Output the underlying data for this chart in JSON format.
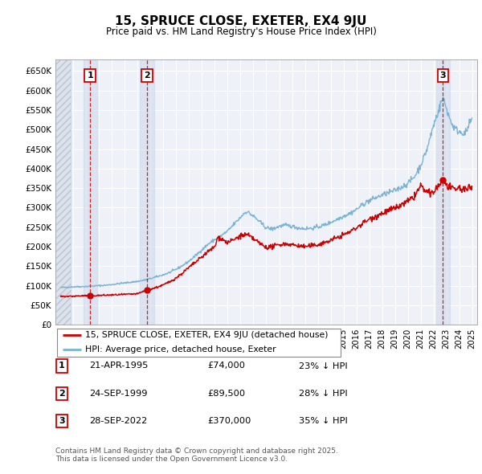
{
  "title": "15, SPRUCE CLOSE, EXETER, EX4 9JU",
  "subtitle": "Price paid vs. HM Land Registry's House Price Index (HPI)",
  "ylim": [
    0,
    680000
  ],
  "yticks": [
    0,
    50000,
    100000,
    150000,
    200000,
    250000,
    300000,
    350000,
    400000,
    450000,
    500000,
    550000,
    600000,
    650000
  ],
  "ytick_labels": [
    "£0",
    "£50K",
    "£100K",
    "£150K",
    "£200K",
    "£250K",
    "£300K",
    "£350K",
    "£400K",
    "£450K",
    "£500K",
    "£550K",
    "£600K",
    "£650K"
  ],
  "xlim_start": 1992.6,
  "xlim_end": 2025.4,
  "xticks": [
    1993,
    1994,
    1995,
    1996,
    1997,
    1998,
    1999,
    2000,
    2001,
    2002,
    2003,
    2004,
    2005,
    2006,
    2007,
    2008,
    2009,
    2010,
    2011,
    2012,
    2013,
    2014,
    2015,
    2016,
    2017,
    2018,
    2019,
    2020,
    2021,
    2022,
    2023,
    2024,
    2025
  ],
  "price_paid": [
    {
      "year": 1995.31,
      "price": 74000,
      "label": "1",
      "date": "21-APR-1995",
      "pct": "23%"
    },
    {
      "year": 1999.73,
      "price": 89500,
      "label": "2",
      "date": "24-SEP-1999",
      "pct": "28%"
    },
    {
      "year": 2022.74,
      "price": 370000,
      "label": "3",
      "date": "28-SEP-2022",
      "pct": "35%"
    }
  ],
  "hpi_color": "#7ab3d4",
  "price_color": "#cc0000",
  "vline_color": "#cc0000",
  "background_plot": "#eef2f8",
  "hatch_facecolor": "#dde3ed",
  "shade_color": "#ccd8ea",
  "legend_price_label": "15, SPRUCE CLOSE, EXETER, EX4 9JU (detached house)",
  "legend_hpi_label": "HPI: Average price, detached house, Exeter",
  "footer_line1": "Contains HM Land Registry data © Crown copyright and database right 2025.",
  "footer_line2": "This data is licensed under the Open Government Licence v3.0.",
  "table_entries": [
    {
      "num": "1",
      "date": "21-APR-1995",
      "price": "£74,000",
      "pct": "23% ↓ HPI"
    },
    {
      "num": "2",
      "date": "24-SEP-1999",
      "price": "£89,500",
      "pct": "28% ↓ HPI"
    },
    {
      "num": "3",
      "date": "28-SEP-2022",
      "price": "£370,000",
      "pct": "35% ↓ HPI"
    }
  ],
  "hpi_anchors_x": [
    1993.0,
    1993.5,
    1994.0,
    1994.5,
    1995.0,
    1995.5,
    1996.0,
    1996.5,
    1997.0,
    1997.5,
    1998.0,
    1998.5,
    1999.0,
    1999.5,
    2000.0,
    2000.5,
    2001.0,
    2001.5,
    2002.0,
    2002.5,
    2003.0,
    2003.5,
    2004.0,
    2004.5,
    2005.0,
    2005.5,
    2006.0,
    2006.5,
    2007.0,
    2007.25,
    2007.5,
    2008.0,
    2008.5,
    2009.0,
    2009.5,
    2010.0,
    2010.5,
    2011.0,
    2011.5,
    2012.0,
    2012.5,
    2013.0,
    2013.5,
    2014.0,
    2014.5,
    2015.0,
    2015.5,
    2016.0,
    2016.5,
    2017.0,
    2017.5,
    2018.0,
    2018.5,
    2019.0,
    2019.5,
    2020.0,
    2020.5,
    2021.0,
    2021.5,
    2021.75,
    2022.0,
    2022.25,
    2022.5,
    2022.65,
    2022.75,
    2023.0,
    2023.25,
    2023.5,
    2023.75,
    2024.0,
    2024.5,
    2025.0
  ],
  "hpi_anchors_y": [
    95000,
    96000,
    97000,
    97500,
    98000,
    99000,
    100000,
    101000,
    103000,
    105000,
    107000,
    109000,
    111000,
    114000,
    118000,
    123000,
    128000,
    134000,
    142000,
    152000,
    163000,
    177000,
    192000,
    207000,
    218000,
    228000,
    240000,
    258000,
    275000,
    285000,
    290000,
    278000,
    263000,
    248000,
    245000,
    252000,
    255000,
    252000,
    248000,
    246000,
    247000,
    250000,
    255000,
    262000,
    270000,
    278000,
    285000,
    295000,
    308000,
    318000,
    325000,
    332000,
    338000,
    344000,
    352000,
    362000,
    378000,
    408000,
    450000,
    480000,
    510000,
    535000,
    558000,
    575000,
    580000,
    555000,
    530000,
    510000,
    500000,
    495000,
    490000,
    530000
  ],
  "red_anchors_x": [
    1993.0,
    1994.0,
    1995.0,
    1995.31,
    1996.0,
    1997.0,
    1998.0,
    1999.0,
    1999.73,
    2000.0,
    2000.5,
    2001.0,
    2001.5,
    2002.0,
    2002.5,
    2003.0,
    2003.5,
    2004.0,
    2004.5,
    2005.0,
    2005.25,
    2005.5,
    2006.0,
    2006.5,
    2007.0,
    2007.5,
    2008.0,
    2008.5,
    2009.0,
    2009.5,
    2010.0,
    2010.5,
    2011.0,
    2011.5,
    2012.0,
    2012.5,
    2013.0,
    2013.5,
    2014.0,
    2014.5,
    2015.0,
    2015.5,
    2016.0,
    2016.5,
    2017.0,
    2017.5,
    2018.0,
    2018.5,
    2019.0,
    2019.5,
    2020.0,
    2020.5,
    2021.0,
    2021.5,
    2021.75,
    2022.0,
    2022.5,
    2022.74,
    2023.0,
    2023.5,
    2024.0,
    2024.5,
    2025.0
  ],
  "red_anchors_y": [
    72000,
    73000,
    74500,
    74000,
    75000,
    76000,
    77500,
    79000,
    89500,
    91000,
    96000,
    102000,
    110000,
    120000,
    133000,
    147000,
    160000,
    174000,
    188000,
    200000,
    225000,
    220000,
    210000,
    218000,
    228000,
    230000,
    220000,
    208000,
    198000,
    200000,
    205000,
    207000,
    205000,
    202000,
    200000,
    202000,
    205000,
    210000,
    216000,
    223000,
    230000,
    238000,
    248000,
    260000,
    270000,
    278000,
    285000,
    292000,
    298000,
    306000,
    315000,
    328000,
    355000,
    338000,
    335000,
    340000,
    360000,
    370000,
    358000,
    345000,
    350000,
    345000,
    355000
  ]
}
